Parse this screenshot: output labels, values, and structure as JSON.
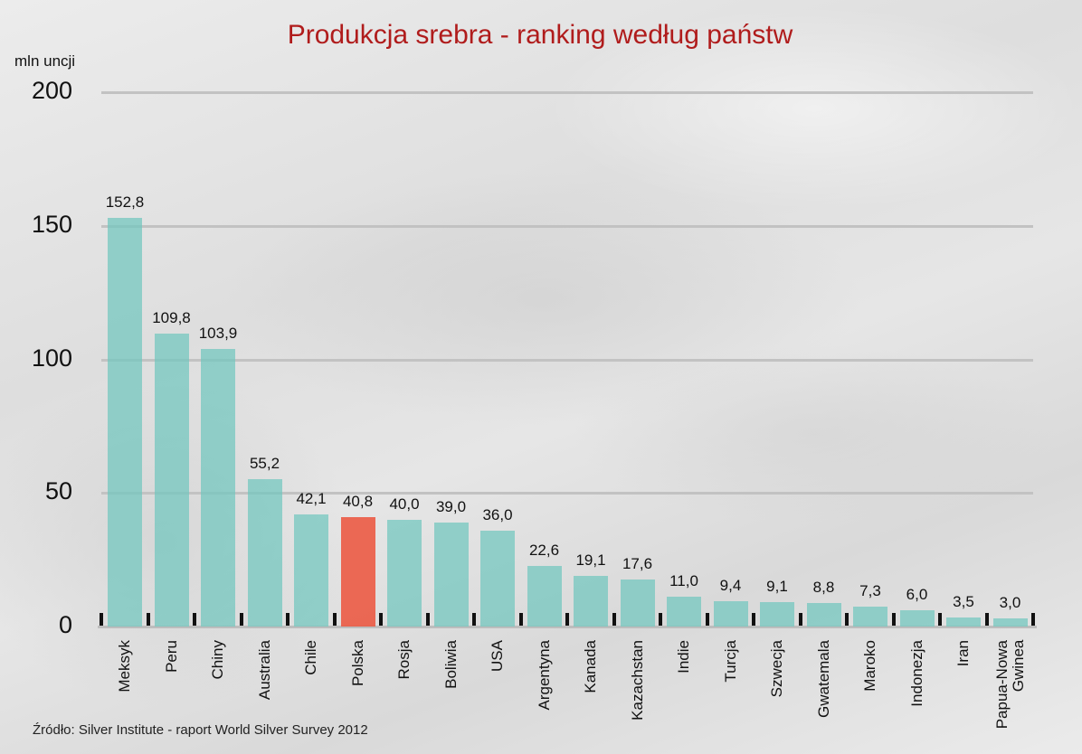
{
  "chart": {
    "title": "Produkcja srebra - ranking według państw",
    "unit_label": "mln uncji",
    "source": "Źródło: Silver Institute - raport World Silver Survey 2012",
    "y_ticks": [
      "200",
      "150",
      "100",
      "50",
      "0"
    ],
    "colors": {
      "bar": "#8ccdc6",
      "highlight": "#ec5640",
      "title": "#b01c1c"
    }
  },
  "chart_data": {
    "type": "bar",
    "title": "Produkcja srebra - ranking według państw",
    "xlabel": "",
    "ylabel": "mln uncji",
    "ylim": [
      0,
      200
    ],
    "yticks": [
      0,
      50,
      100,
      150,
      200
    ],
    "grid": true,
    "legend": null,
    "highlighted_category": "Polska",
    "categories": [
      "Meksyk",
      "Peru",
      "Chiny",
      "Australia",
      "Chile",
      "Polska",
      "Rosja",
      "Boliwia",
      "USA",
      "Argentyna",
      "Kanada",
      "Kazachstan",
      "Indie",
      "Turcja",
      "Szwecja",
      "Gwatemala",
      "Maroko",
      "Indonezja",
      "Iran",
      "Papua-Nowa Gwinea"
    ],
    "values": [
      152.8,
      109.8,
      103.9,
      55.2,
      42.1,
      40.8,
      40.0,
      39.0,
      36.0,
      22.6,
      19.1,
      17.6,
      11.0,
      9.4,
      9.1,
      8.8,
      7.3,
      6.0,
      3.5,
      3.0
    ],
    "value_labels": [
      "152,8",
      "109,8",
      "103,9",
      "55,2",
      "42,1",
      "40,8",
      "40,0",
      "39,0",
      "36,0",
      "22,6",
      "19,1",
      "17,6",
      "11,0",
      "9,4",
      "9,1",
      "8,8",
      "7,3",
      "6,0",
      "3,5",
      "3,0"
    ],
    "source": "Źródło: Silver Institute - raport World Silver Survey 2012"
  }
}
